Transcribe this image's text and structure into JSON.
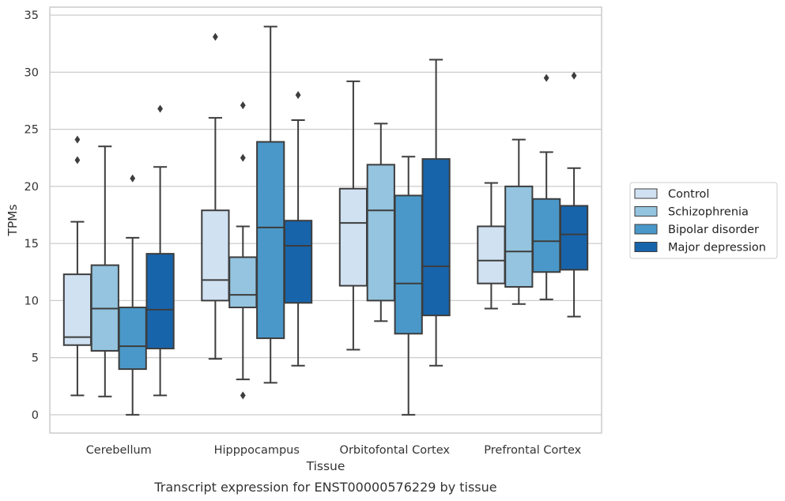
{
  "chart_data": {
    "type": "boxplot",
    "title": "Transcript expression for ENST00000576229 by tissue",
    "xlabel": "Tissue",
    "ylabel": "TPMs",
    "ylim": [
      -1.6,
      35.7
    ],
    "yticks": [
      0,
      5,
      10,
      15,
      20,
      25,
      30,
      35
    ],
    "grid": true,
    "legend_position": "right",
    "categories": [
      "Cerebellum",
      "Hipppocampus",
      "Orbitofontal Cortex",
      "Prefrontal Cortex"
    ],
    "series": [
      {
        "name": "Control",
        "color": "#d0e1f2",
        "boxes": [
          {
            "whisker_low": 1.7,
            "q1": 6.1,
            "median": 6.8,
            "q3": 12.3,
            "whisker_high": 16.9,
            "outliers": [
              22.3,
              24.1
            ]
          },
          {
            "whisker_low": 4.9,
            "q1": 10.0,
            "median": 11.8,
            "q3": 17.9,
            "whisker_high": 26.0,
            "outliers": [
              33.1
            ]
          },
          {
            "whisker_low": 5.7,
            "q1": 11.3,
            "median": 16.8,
            "q3": 19.8,
            "whisker_high": 29.2,
            "outliers": []
          },
          {
            "whisker_low": 9.3,
            "q1": 11.5,
            "median": 13.5,
            "q3": 16.5,
            "whisker_high": 20.3,
            "outliers": []
          }
        ]
      },
      {
        "name": "Schizophrenia",
        "color": "#94c4df",
        "boxes": [
          {
            "whisker_low": 1.6,
            "q1": 5.6,
            "median": 9.3,
            "q3": 13.1,
            "whisker_high": 23.5,
            "outliers": []
          },
          {
            "whisker_low": 3.1,
            "q1": 9.4,
            "median": 10.5,
            "q3": 13.8,
            "whisker_high": 16.5,
            "outliers": [
              1.7,
              22.5,
              27.1
            ]
          },
          {
            "whisker_low": 8.2,
            "q1": 10.0,
            "median": 17.9,
            "q3": 21.9,
            "whisker_high": 25.5,
            "outliers": []
          },
          {
            "whisker_low": 9.7,
            "q1": 11.2,
            "median": 14.3,
            "q3": 20.0,
            "whisker_high": 24.1,
            "outliers": []
          }
        ]
      },
      {
        "name": "Bipolar disorder",
        "color": "#4a98c9",
        "boxes": [
          {
            "whisker_low": 0.0,
            "q1": 4.0,
            "median": 6.0,
            "q3": 9.4,
            "whisker_high": 15.5,
            "outliers": [
              20.7
            ]
          },
          {
            "whisker_low": 2.8,
            "q1": 6.7,
            "median": 16.4,
            "q3": 23.9,
            "whisker_high": 34.0,
            "outliers": []
          },
          {
            "whisker_low": 0.0,
            "q1": 7.1,
            "median": 11.5,
            "q3": 19.2,
            "whisker_high": 22.6,
            "outliers": []
          },
          {
            "whisker_low": 10.1,
            "q1": 12.5,
            "median": 15.2,
            "q3": 18.9,
            "whisker_high": 23.0,
            "outliers": [
              29.5
            ]
          }
        ]
      },
      {
        "name": "Major depression",
        "color": "#1764ab",
        "boxes": [
          {
            "whisker_low": 1.7,
            "q1": 5.8,
            "median": 9.2,
            "q3": 14.1,
            "whisker_high": 21.7,
            "outliers": [
              26.8
            ]
          },
          {
            "whisker_low": 4.3,
            "q1": 9.8,
            "median": 14.8,
            "q3": 17.0,
            "whisker_high": 25.8,
            "outliers": [
              28.0
            ]
          },
          {
            "whisker_low": 4.3,
            "q1": 8.7,
            "median": 13.0,
            "q3": 22.4,
            "whisker_high": 31.1,
            "outliers": []
          },
          {
            "whisker_low": 8.6,
            "q1": 12.7,
            "median": 15.8,
            "q3": 18.3,
            "whisker_high": 21.6,
            "outliers": [
              29.7
            ]
          }
        ]
      }
    ]
  }
}
